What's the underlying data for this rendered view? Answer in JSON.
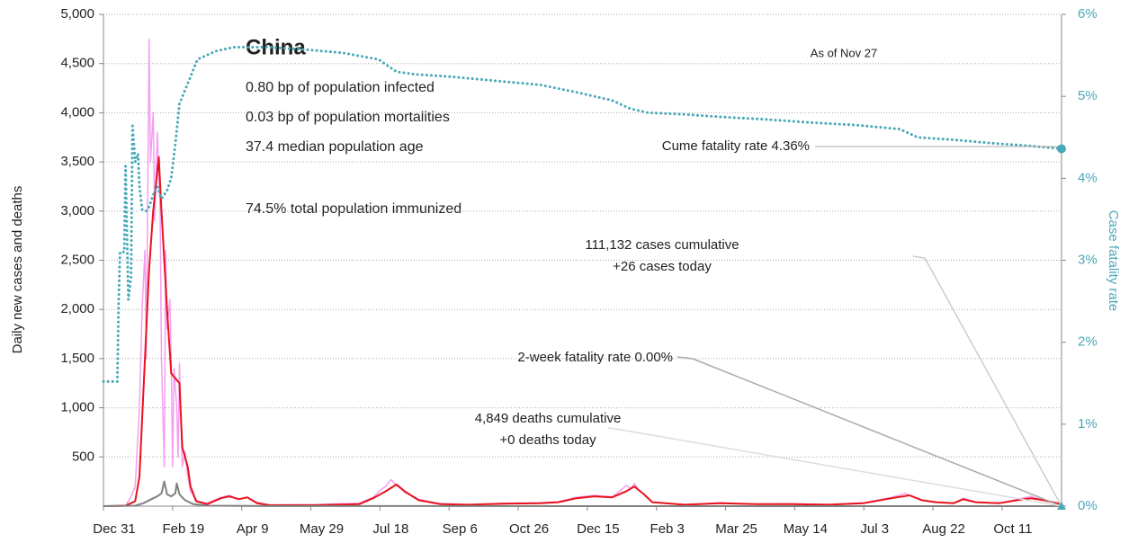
{
  "chart_data": {
    "type": "line",
    "title": "China",
    "stats": [
      "0.80 bp of population infected",
      "0.03 bp of population mortalities",
      "37.4 median population age",
      "74.5% total population immunized"
    ],
    "as_of": "As of Nov 27",
    "annotations": {
      "cume_fatality": "Cume fatality rate 4.36%",
      "cases_cum": "111,132 cases cumulative",
      "cases_today": "+26 cases today",
      "two_week": "2-week fatality rate 0.00%",
      "deaths_cum": "4,849 deaths cumulative",
      "deaths_today": "+0 deaths today"
    },
    "ylabel": "Daily new cases and deaths",
    "y2label": "Case fatality rate",
    "xlim": [
      0,
      693
    ],
    "xticks": [
      {
        "value": 0,
        "label": "Dec 31"
      },
      {
        "value": 50,
        "label": "Feb 19"
      },
      {
        "value": 100,
        "label": "Apr 9"
      },
      {
        "value": 150,
        "label": "May 29"
      },
      {
        "value": 200,
        "label": "Jul 18"
      },
      {
        "value": 250,
        "label": "Sep 6"
      },
      {
        "value": 300,
        "label": "Oct 26"
      },
      {
        "value": 350,
        "label": "Dec 15"
      },
      {
        "value": 400,
        "label": "Feb 3"
      },
      {
        "value": 450,
        "label": "Mar 25"
      },
      {
        "value": 500,
        "label": "May 14"
      },
      {
        "value": 550,
        "label": "Jul 3"
      },
      {
        "value": 600,
        "label": "Aug 22"
      },
      {
        "value": 650,
        "label": "Oct 11"
      }
    ],
    "ylim": [
      0,
      5000
    ],
    "yticks": [
      500,
      {
        "value": 1000,
        "label": "1,000"
      },
      {
        "value": 1500,
        "label": "1,500"
      },
      {
        "value": 2000,
        "label": "2,000"
      },
      {
        "value": 2500,
        "label": "2,500"
      },
      {
        "value": 3000,
        "label": "3,000"
      },
      {
        "value": 3500,
        "label": "3,500"
      },
      {
        "value": 4000,
        "label": "4,000"
      },
      {
        "value": 4500,
        "label": "4,500"
      },
      {
        "value": 5000,
        "label": "5,000"
      }
    ],
    "y2lim": [
      0,
      6
    ],
    "y2ticks": [
      {
        "value": 0,
        "label": "0%"
      },
      {
        "value": 1,
        "label": "1%"
      },
      {
        "value": 2,
        "label": "2%"
      },
      {
        "value": 3,
        "label": "3%"
      },
      {
        "value": 4,
        "label": "4%"
      },
      {
        "value": 5,
        "label": "5%"
      },
      {
        "value": 6,
        "label": "6%"
      }
    ],
    "grid": true,
    "series": [
      {
        "color": "#f59ff0",
        "style": "solid",
        "width": 1.5,
        "x": [
          0,
          16,
          20,
          23,
          26,
          28,
          30,
          31,
          33,
          34,
          36,
          37,
          39,
          41,
          42,
          44,
          45,
          46,
          48,
          49,
          50,
          51,
          53,
          54,
          55,
          57,
          59,
          61,
          63,
          68,
          75,
          85,
          91,
          98,
          104,
          111,
          120,
          153,
          185,
          195,
          200,
          204,
          208,
          212,
          218,
          228,
          244,
          264,
          290,
          316,
          329,
          342,
          355,
          368,
          375,
          378,
          382,
          384,
          388,
          391,
          397,
          420,
          446,
          472,
          498,
          524,
          550,
          570,
          580,
          583,
          588,
          592,
          602,
          615,
          622,
          631,
          648,
          661,
          671,
          680,
          693
        ],
        "values": [
          0,
          5,
          100,
          200,
          1000,
          2000,
          2600,
          1500,
          4750,
          3500,
          4000,
          2900,
          3800,
          3000,
          1500,
          400,
          2600,
          1800,
          2100,
          1500,
          400,
          1400,
          1000,
          500,
          1450,
          400,
          550,
          300,
          150,
          50,
          30,
          90,
          110,
          70,
          90,
          40,
          10,
          15,
          30,
          90,
          160,
          200,
          270,
          210,
          140,
          70,
          25,
          15,
          30,
          35,
          45,
          90,
          110,
          95,
          170,
          210,
          180,
          230,
          150,
          120,
          40,
          15,
          35,
          20,
          25,
          15,
          35,
          90,
          130,
          110,
          80,
          60,
          40,
          30,
          80,
          40,
          30,
          70,
          100,
          60,
          26
        ]
      },
      {
        "color": "#e8121b",
        "style": "solid",
        "width": 2,
        "x": [
          0,
          16,
          23,
          26,
          29,
          33,
          36,
          40,
          42,
          46,
          49,
          52,
          55,
          57,
          61,
          63,
          67,
          75,
          85,
          91,
          98,
          104,
          111,
          120,
          153,
          185,
          195,
          204,
          212,
          218,
          228,
          244,
          264,
          290,
          316,
          329,
          342,
          355,
          368,
          378,
          384,
          391,
          397,
          420,
          446,
          472,
          498,
          524,
          550,
          570,
          583,
          592,
          602,
          615,
          622,
          631,
          648,
          661,
          671,
          680,
          693
        ],
        "values": [
          0,
          5,
          50,
          300,
          1200,
          2400,
          3000,
          3550,
          3000,
          2000,
          1350,
          1300,
          1250,
          600,
          400,
          200,
          50,
          20,
          80,
          100,
          70,
          90,
          30,
          10,
          10,
          20,
          80,
          150,
          220,
          150,
          60,
          20,
          15,
          25,
          30,
          40,
          80,
          100,
          90,
          150,
          200,
          120,
          40,
          15,
          30,
          20,
          20,
          15,
          30,
          80,
          110,
          60,
          40,
          30,
          70,
          40,
          30,
          60,
          80,
          60,
          20
        ]
      },
      {
        "color": "#808080",
        "style": "solid",
        "width": 2,
        "x": [
          0,
          23,
          29,
          36,
          39,
          42,
          44,
          46,
          49,
          52,
          53,
          55,
          59,
          65,
          75,
          120,
          693
        ],
        "values": [
          0,
          5,
          30,
          80,
          100,
          130,
          250,
          120,
          100,
          130,
          230,
          120,
          60,
          20,
          5,
          1,
          0
        ]
      },
      {
        "color": "#4aa8b8",
        "style": "dotted",
        "width": 3,
        "axis": "y2",
        "x": [
          0,
          10,
          11,
          12,
          15,
          16,
          18,
          20,
          21,
          23,
          25,
          26,
          28,
          31,
          33,
          36,
          39,
          42,
          46,
          49,
          52,
          55,
          62,
          68,
          81,
          94,
          120,
          146,
          173,
          199,
          212,
          225,
          251,
          290,
          316,
          342,
          368,
          381,
          394,
          420,
          446,
          478,
          511,
          544,
          576,
          589,
          615,
          641,
          667,
          693
        ],
        "values": [
          1.52,
          1.52,
          2.5,
          3.1,
          3.1,
          4.15,
          2.52,
          2.8,
          4.64,
          4.2,
          4.3,
          3.9,
          3.62,
          3.6,
          3.65,
          3.8,
          3.9,
          3.75,
          3.85,
          4.0,
          4.42,
          4.91,
          5.2,
          5.45,
          5.55,
          5.6,
          5.6,
          5.57,
          5.53,
          5.45,
          5.3,
          5.27,
          5.24,
          5.18,
          5.14,
          5.05,
          4.95,
          4.85,
          4.8,
          4.78,
          4.75,
          4.72,
          4.68,
          4.65,
          4.6,
          4.5,
          4.47,
          4.43,
          4.4,
          4.36
        ]
      }
    ]
  }
}
